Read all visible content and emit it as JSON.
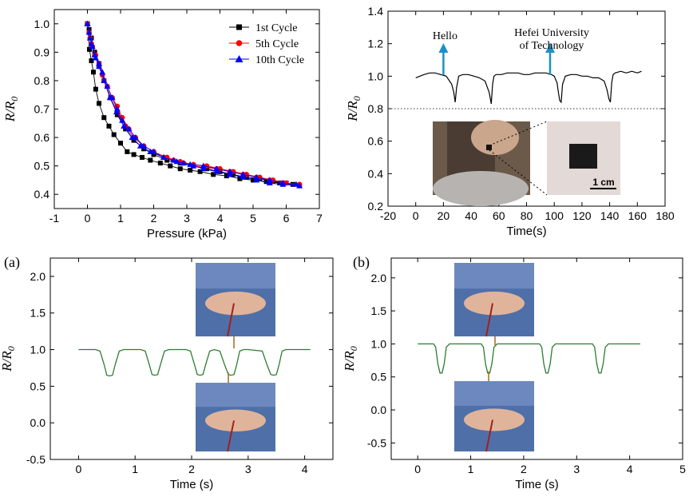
{
  "chart_data": [
    {
      "type": "line",
      "panel": "top-left",
      "xlabel": "Pressure (kPa)",
      "ylabel": "R/R0",
      "xlim": [
        -1,
        7
      ],
      "ylim": [
        0.35,
        1.05
      ],
      "xticks": [
        -1,
        0,
        1,
        2,
        3,
        4,
        5,
        6,
        7
      ],
      "yticks": [
        0.4,
        0.5,
        0.6,
        0.7,
        0.8,
        0.9,
        1.0
      ],
      "legend_position": "top-right",
      "series": [
        {
          "name": "1st  Cycle",
          "color": "#000000",
          "marker": "square",
          "x": [
            0.0,
            0.06,
            0.12,
            0.18,
            0.25,
            0.35,
            0.5,
            0.65,
            0.8,
            1.0,
            1.2,
            1.4,
            1.65,
            1.9,
            2.2,
            2.5,
            2.8,
            3.1,
            3.4,
            3.8,
            4.2,
            4.6,
            5.0,
            5.4,
            5.8,
            6.2,
            6.4,
            6.0,
            5.6,
            5.2,
            4.8,
            4.4,
            4.0,
            3.6,
            3.2,
            2.8,
            2.4,
            2.0,
            1.7,
            1.4,
            1.15,
            0.9,
            0.7,
            0.5,
            0.35,
            0.22,
            0.12,
            0.05,
            0.0
          ],
          "y": [
            1.0,
            0.91,
            0.87,
            0.83,
            0.77,
            0.72,
            0.67,
            0.64,
            0.61,
            0.58,
            0.55,
            0.54,
            0.53,
            0.52,
            0.51,
            0.5,
            0.49,
            0.485,
            0.48,
            0.47,
            0.465,
            0.455,
            0.45,
            0.445,
            0.44,
            0.435,
            0.43,
            0.44,
            0.445,
            0.455,
            0.46,
            0.47,
            0.48,
            0.49,
            0.5,
            0.51,
            0.52,
            0.54,
            0.56,
            0.59,
            0.63,
            0.68,
            0.74,
            0.8,
            0.86,
            0.9,
            0.95,
            0.98,
            1.0
          ]
        },
        {
          "name": "5th  Cycle",
          "color": "#ff0000",
          "marker": "circle",
          "x": [
            0.0,
            0.08,
            0.15,
            0.25,
            0.35,
            0.45,
            0.6,
            0.75,
            0.9,
            1.05,
            1.25,
            1.45,
            1.7,
            2.0,
            2.3,
            2.6,
            2.9,
            3.2,
            3.5,
            3.9,
            4.3,
            4.7,
            5.1,
            5.5,
            5.9,
            6.4,
            6.4,
            6.0,
            5.6,
            5.2,
            4.8,
            4.4,
            4.0,
            3.6,
            3.2,
            2.8,
            2.4,
            2.0,
            1.7,
            1.4,
            1.15,
            0.9,
            0.7,
            0.5,
            0.35,
            0.22,
            0.12,
            0.05,
            0.0
          ],
          "y": [
            1.0,
            0.95,
            0.92,
            0.89,
            0.86,
            0.82,
            0.78,
            0.74,
            0.71,
            0.67,
            0.63,
            0.6,
            0.57,
            0.55,
            0.53,
            0.52,
            0.51,
            0.5,
            0.495,
            0.49,
            0.48,
            0.47,
            0.46,
            0.45,
            0.44,
            0.435,
            0.43,
            0.44,
            0.45,
            0.46,
            0.47,
            0.48,
            0.49,
            0.5,
            0.505,
            0.515,
            0.53,
            0.55,
            0.57,
            0.6,
            0.64,
            0.69,
            0.74,
            0.8,
            0.85,
            0.89,
            0.93,
            0.97,
            1.0
          ]
        },
        {
          "name": "10th  Cycle",
          "color": "#0000ff",
          "marker": "triangle",
          "x": [
            0.0,
            0.08,
            0.15,
            0.25,
            0.35,
            0.45,
            0.6,
            0.75,
            0.9,
            1.05,
            1.25,
            1.45,
            1.7,
            2.0,
            2.3,
            2.6,
            2.9,
            3.2,
            3.5,
            3.9,
            4.3,
            4.7,
            5.1,
            5.5,
            5.9,
            6.4,
            6.3,
            5.9,
            5.5,
            5.1,
            4.7,
            4.3,
            3.9,
            3.5,
            3.1,
            2.7,
            2.3,
            1.9,
            1.6,
            1.35,
            1.1,
            0.88,
            0.68,
            0.5,
            0.35,
            0.22,
            0.12,
            0.05,
            0.0
          ],
          "y": [
            1.0,
            0.95,
            0.92,
            0.88,
            0.86,
            0.83,
            0.78,
            0.74,
            0.7,
            0.66,
            0.63,
            0.6,
            0.57,
            0.55,
            0.53,
            0.52,
            0.51,
            0.5,
            0.49,
            0.48,
            0.47,
            0.46,
            0.45,
            0.44,
            0.435,
            0.43,
            0.435,
            0.44,
            0.45,
            0.46,
            0.47,
            0.48,
            0.49,
            0.5,
            0.505,
            0.515,
            0.53,
            0.55,
            0.57,
            0.6,
            0.64,
            0.69,
            0.74,
            0.8,
            0.85,
            0.89,
            0.93,
            0.97,
            1.0
          ]
        }
      ]
    },
    {
      "type": "line",
      "panel": "top-right",
      "xlabel": "Time(s)",
      "ylabel": "R/R0",
      "xlim": [
        -20,
        180
      ],
      "ylim": [
        0.2,
        1.4
      ],
      "xticks": [
        -20,
        0,
        20,
        40,
        60,
        80,
        100,
        120,
        140,
        160,
        180
      ],
      "yticks": [
        0.2,
        0.4,
        0.6,
        0.8,
        1.0,
        1.2,
        1.4
      ],
      "reference_line_y": 0.8,
      "color": "#000000",
      "x": [
        0,
        3,
        6,
        10,
        14,
        18,
        22,
        26,
        27.5,
        28.5,
        29.5,
        31,
        34,
        38,
        42,
        46,
        50,
        53,
        54.5,
        55.5,
        56.5,
        58,
        62,
        66,
        70,
        74,
        78,
        82,
        86,
        90,
        94,
        98,
        100,
        102,
        103,
        104,
        105,
        106,
        108,
        112,
        116,
        120,
        124,
        128,
        132,
        136,
        138,
        139.5,
        140.5,
        141.5,
        142.5,
        144,
        148,
        152,
        156,
        160,
        163
      ],
      "y": [
        0.99,
        1.0,
        1.01,
        1.02,
        1.02,
        1.01,
        1.0,
        0.95,
        0.9,
        0.84,
        0.93,
        1.0,
        1.01,
        1.01,
        1.0,
        0.99,
        0.97,
        0.9,
        0.83,
        0.95,
        1.0,
        1.01,
        1.01,
        1.02,
        1.02,
        1.02,
        1.01,
        1.01,
        1.02,
        1.02,
        1.02,
        1.01,
        1.0,
        0.96,
        0.9,
        0.85,
        0.84,
        0.95,
        1.0,
        1.01,
        1.01,
        1.0,
        1.0,
        0.99,
        0.99,
        0.97,
        0.92,
        0.86,
        0.84,
        0.96,
        1.01,
        1.02,
        1.03,
        1.02,
        1.03,
        1.02,
        1.03
      ],
      "annotations": [
        {
          "text": "Hello",
          "arrow_x": 20
        },
        {
          "text": "Hefei University",
          "text2": "of Technology",
          "arrow_x": 97
        }
      ],
      "inset_scale_label": "1 cm"
    },
    {
      "type": "line",
      "panel": "bottom-left",
      "panel_label": "(a)",
      "xlabel": "Time (s)",
      "ylabel": "R/R0",
      "xlim": [
        -0.5,
        4.5
      ],
      "ylim": [
        -0.5,
        2.25
      ],
      "xticks": [
        0,
        1,
        2,
        3,
        4
      ],
      "yticks": [
        -0.5,
        0.0,
        0.5,
        1.0,
        1.5,
        2.0
      ],
      "color": "#2e7d32",
      "x": [
        0.0,
        0.3,
        0.38,
        0.45,
        0.5,
        0.55,
        0.6,
        0.65,
        0.72,
        0.8,
        1.1,
        1.18,
        1.25,
        1.3,
        1.35,
        1.4,
        1.45,
        1.52,
        1.6,
        1.9,
        1.98,
        2.05,
        2.1,
        2.15,
        2.2,
        2.25,
        2.32,
        2.4,
        2.5,
        2.58,
        2.65,
        2.7,
        2.75,
        2.8,
        2.85,
        2.92,
        3.0,
        3.25,
        3.33,
        3.4,
        3.45,
        3.5,
        3.55,
        3.6,
        3.67,
        3.75,
        4.1
      ],
      "y": [
        1.0,
        1.0,
        0.98,
        0.8,
        0.65,
        0.64,
        0.65,
        0.8,
        0.98,
        1.0,
        1.0,
        0.98,
        0.8,
        0.66,
        0.65,
        0.66,
        0.8,
        0.98,
        1.0,
        1.0,
        0.98,
        0.8,
        0.66,
        0.65,
        0.66,
        0.8,
        0.98,
        1.0,
        0.98,
        0.8,
        0.66,
        0.65,
        0.66,
        0.8,
        0.98,
        1.0,
        1.0,
        0.98,
        0.8,
        0.66,
        0.65,
        0.66,
        0.8,
        0.98,
        1.0,
        1.0,
        1.0
      ]
    },
    {
      "type": "line",
      "panel": "bottom-right",
      "panel_label": "(b)",
      "xlabel": "Time (s)",
      "ylabel": "R/R0",
      "xlim": [
        -0.5,
        5
      ],
      "ylim": [
        -0.75,
        2.3
      ],
      "xticks": [
        0,
        1,
        2,
        3,
        4,
        5
      ],
      "yticks": [
        -0.5,
        0.0,
        0.5,
        1.0,
        1.5,
        2.0
      ],
      "color": "#2e7d32",
      "x": [
        0.0,
        0.3,
        0.34,
        0.38,
        0.42,
        0.46,
        0.5,
        0.54,
        0.6,
        1.2,
        1.24,
        1.28,
        1.32,
        1.36,
        1.4,
        1.44,
        1.5,
        2.3,
        2.34,
        2.38,
        2.42,
        2.46,
        2.5,
        2.54,
        2.6,
        3.3,
        3.34,
        3.38,
        3.42,
        3.46,
        3.5,
        3.54,
        3.6,
        4.2
      ],
      "y": [
        1.0,
        1.0,
        0.95,
        0.7,
        0.56,
        0.56,
        0.7,
        0.95,
        1.0,
        1.0,
        0.95,
        0.7,
        0.56,
        0.56,
        0.7,
        0.95,
        1.0,
        1.0,
        0.95,
        0.7,
        0.56,
        0.56,
        0.7,
        0.95,
        1.0,
        1.0,
        0.95,
        0.7,
        0.56,
        0.56,
        0.7,
        0.95,
        1.0,
        1.0
      ]
    }
  ]
}
